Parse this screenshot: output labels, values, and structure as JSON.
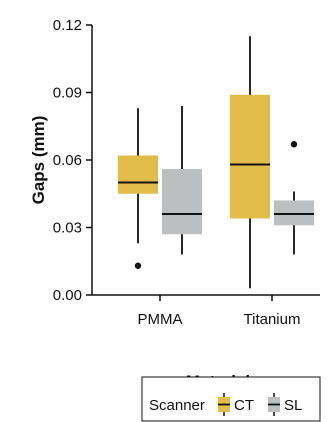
{
  "chart_data": {
    "type": "box",
    "xlabel": "Material",
    "ylabel": "Gaps (mm)",
    "ylim": [
      0,
      0.12
    ],
    "y_ticks": [
      "0.00",
      "0.03",
      "0.06",
      "0.09",
      "0.12"
    ],
    "categories": [
      "PMMA",
      "Titanium"
    ],
    "legend": {
      "title": "Scanner",
      "placement": "bottom"
    },
    "series": [
      {
        "name": "CT",
        "color": "#E2BC4A",
        "boxes": [
          {
            "category": "PMMA",
            "whisker_low": 0.023,
            "q1": 0.045,
            "median": 0.05,
            "q3": 0.062,
            "whisker_high": 0.083,
            "outliers": [
              0.013
            ]
          },
          {
            "category": "Titanium",
            "whisker_low": 0.003,
            "q1": 0.034,
            "median": 0.058,
            "q3": 0.089,
            "whisker_high": 0.115,
            "outliers": []
          }
        ]
      },
      {
        "name": "SL",
        "color": "#BDBEC0",
        "boxes": [
          {
            "category": "PMMA",
            "whisker_low": 0.018,
            "q1": 0.027,
            "median": 0.036,
            "q3": 0.056,
            "whisker_high": 0.084,
            "outliers": []
          },
          {
            "category": "Titanium",
            "whisker_low": 0.018,
            "q1": 0.031,
            "median": 0.036,
            "q3": 0.042,
            "whisker_high": 0.046,
            "outliers": [
              0.067
            ]
          }
        ]
      }
    ]
  }
}
